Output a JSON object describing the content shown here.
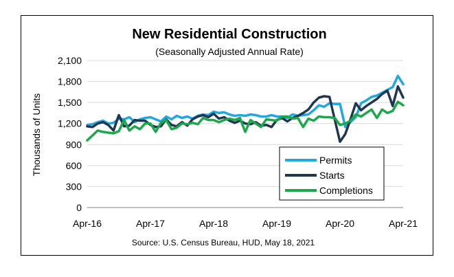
{
  "chart_data": {
    "type": "line",
    "title": "New Residential Construction",
    "subtitle": "(Seasonally Adjusted Annual Rate)",
    "ylabel": "Thousands of Units",
    "ylim": [
      0,
      2100
    ],
    "yticks": [
      0,
      300,
      600,
      900,
      1200,
      1500,
      1800,
      2100
    ],
    "ytick_labels": [
      "0",
      "300",
      "600",
      "900",
      "1,200",
      "1,500",
      "1,800",
      "2,100"
    ],
    "x_tick_labels": [
      "Apr-16",
      "Apr-17",
      "Apr-18",
      "Apr-19",
      "Apr-20",
      "Apr-21"
    ],
    "x_tick_index": [
      0,
      12,
      24,
      36,
      48,
      60
    ],
    "source": "Source:  U.S. Census Bureau, HUD, May 18, 2021",
    "legend_position": "bottom-right",
    "grid": true,
    "series": [
      {
        "name": "Permits",
        "color": "#21a8e0",
        "values": [
          1180,
          1190,
          1220,
          1240,
          1200,
          1210,
          1270,
          1260,
          1290,
          1220,
          1260,
          1280,
          1290,
          1260,
          1230,
          1300,
          1260,
          1310,
          1280,
          1300,
          1270,
          1310,
          1330,
          1320,
          1370,
          1350,
          1360,
          1330,
          1310,
          1320,
          1310,
          1330,
          1320,
          1300,
          1300,
          1320,
          1300,
          1300,
          1280,
          1330,
          1310,
          1320,
          1330,
          1390,
          1460,
          1440,
          1490,
          1480,
          1480,
          1150,
          1220,
          1290,
          1490,
          1530,
          1580,
          1600,
          1640,
          1680,
          1720,
          1880,
          1760
        ]
      },
      {
        "name": "Starts",
        "color": "#1f3652",
        "values": [
          1160,
          1150,
          1200,
          1220,
          1180,
          1100,
          1320,
          1160,
          1170,
          1250,
          1240,
          1240,
          1180,
          1150,
          1160,
          1260,
          1180,
          1160,
          1220,
          1170,
          1260,
          1300,
          1320,
          1290,
          1340,
          1270,
          1290,
          1240,
          1210,
          1240,
          1200,
          1190,
          1220,
          1170,
          1180,
          1150,
          1250,
          1280,
          1230,
          1280,
          1310,
          1350,
          1400,
          1500,
          1570,
          1590,
          1580,
          1260,
          940,
          1050,
          1260,
          1490,
          1390,
          1450,
          1500,
          1550,
          1620,
          1670,
          1450,
          1730,
          1570
        ]
      },
      {
        "name": "Completions",
        "color": "#1aa84a",
        "values": [
          960,
          1030,
          1100,
          1080,
          1070,
          1060,
          1090,
          1250,
          1100,
          1160,
          1120,
          1200,
          1200,
          1080,
          1210,
          1250,
          1120,
          1140,
          1200,
          1190,
          1210,
          1190,
          1280,
          1250,
          1250,
          1220,
          1250,
          1270,
          1250,
          1280,
          1080,
          1250,
          1200,
          1150,
          1260,
          1250,
          1240,
          1300,
          1300,
          1270,
          1280,
          1150,
          1270,
          1240,
          1300,
          1290,
          1290,
          1280,
          1180,
          1200,
          1240,
          1330,
          1300,
          1350,
          1400,
          1280,
          1400,
          1350,
          1380,
          1510,
          1460
        ]
      }
    ]
  }
}
